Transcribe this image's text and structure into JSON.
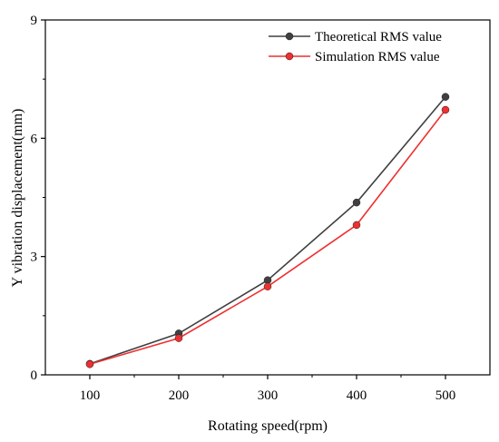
{
  "chart_data": {
    "type": "line",
    "title": "",
    "xlabel": "Rotating speed(rpm)",
    "ylabel": "Y vibration displacement(mm)",
    "x": [
      100,
      200,
      300,
      400,
      500
    ],
    "xticks": [
      "100",
      "200",
      "300",
      "400",
      "500"
    ],
    "yticks": [
      "0",
      "3",
      "6",
      "9"
    ],
    "xlim": [
      50,
      550
    ],
    "ylim": [
      0,
      9
    ],
    "grid": false,
    "legend_position": "top-right",
    "series": [
      {
        "name": "Theoretical RMS value",
        "color": "#404040",
        "values": [
          0.28,
          1.05,
          2.4,
          4.37,
          7.05
        ]
      },
      {
        "name": "Simulation RMS value",
        "color": "#ee3030",
        "values": [
          0.27,
          0.93,
          2.24,
          3.8,
          6.72
        ]
      }
    ]
  }
}
